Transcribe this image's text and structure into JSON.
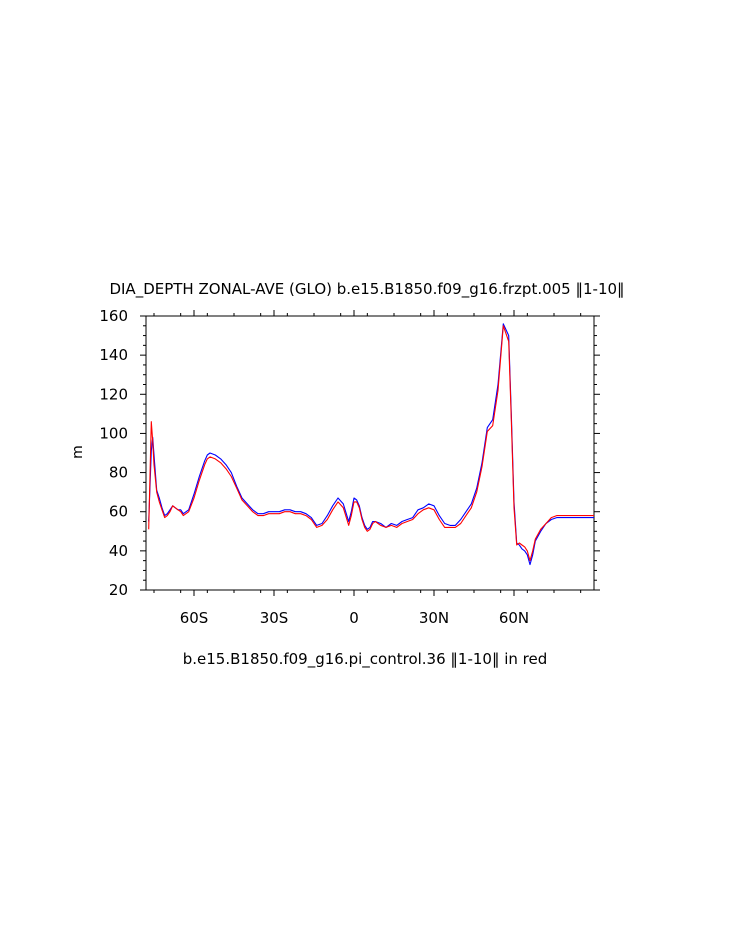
{
  "chart_data": {
    "type": "line",
    "title": "DIA_DEPTH ZONAL-AVE (GLO) b.e15.B1850.f09_g16.frzpt.005 ‖1-10‖",
    "subtitle": "b.e15.B1850.f09_g16.pi_control.36 ‖1-10‖ in red",
    "ylabel": "m",
    "xlabel": "",
    "xlim": [
      -78,
      90
    ],
    "ylim": [
      20,
      160
    ],
    "x_ticks": [
      {
        "value": -60,
        "label": "60S"
      },
      {
        "value": -30,
        "label": "30S"
      },
      {
        "value": 0,
        "label": "0"
      },
      {
        "value": 30,
        "label": "30N"
      },
      {
        "value": 60,
        "label": "60N"
      }
    ],
    "y_ticks": [
      20,
      40,
      60,
      80,
      100,
      120,
      140,
      160
    ],
    "grid": false,
    "series": [
      {
        "color": "#0000ff",
        "x": [
          -77,
          -76,
          -75.5,
          -75,
          -74,
          -73,
          -72,
          -71,
          -70,
          -69,
          -68,
          -67,
          -66,
          -65,
          -64,
          -62,
          -60,
          -58,
          -56,
          -55,
          -54,
          -52,
          -50,
          -48,
          -46,
          -44,
          -42,
          -40,
          -38,
          -36,
          -34,
          -32,
          -30,
          -28,
          -26,
          -24,
          -22,
          -20,
          -18,
          -16,
          -14,
          -12,
          -10,
          -8,
          -6,
          -4,
          -2,
          -1,
          0,
          1,
          2,
          3,
          4,
          5,
          6,
          7,
          8,
          10,
          12,
          14,
          16,
          18,
          20,
          22,
          24,
          26,
          28,
          30,
          32,
          34,
          36,
          38,
          40,
          42,
          44,
          46,
          48,
          50,
          52,
          54,
          56,
          58,
          59,
          60,
          61,
          62,
          63,
          64,
          65,
          66,
          67,
          68,
          70,
          72,
          74,
          76,
          77,
          78,
          80,
          82,
          84,
          86,
          88,
          90
        ],
        "y": [
          55,
          91,
          98,
          89,
          71,
          67,
          62,
          58,
          59,
          61,
          63,
          62,
          61,
          61,
          59,
          61,
          69,
          78,
          86,
          89,
          90,
          89,
          87,
          84,
          80,
          73,
          67,
          64,
          61,
          59,
          59,
          60,
          60,
          60,
          61,
          61,
          60,
          60,
          59,
          57,
          53,
          54,
          58,
          63,
          67,
          64,
          55,
          60,
          67,
          66,
          63,
          57,
          53,
          51,
          52,
          55,
          55,
          54,
          52,
          54,
          53,
          55,
          56,
          57,
          61,
          62,
          64,
          63,
          58,
          54,
          53,
          53,
          56,
          60,
          64,
          72,
          85,
          103,
          107,
          125,
          156,
          150,
          110,
          65,
          44,
          43,
          41,
          40,
          38,
          33,
          38,
          45,
          50,
          54,
          56,
          57,
          57,
          57,
          57,
          57,
          57,
          57,
          57,
          57
        ]
      },
      {
        "color": "#ff0000",
        "x": [
          -77,
          -76,
          -75.5,
          -75,
          -74,
          -73,
          -72,
          -71,
          -70,
          -69,
          -68,
          -67,
          -66,
          -65,
          -64,
          -62,
          -60,
          -58,
          -56,
          -55,
          -54,
          -52,
          -50,
          -48,
          -46,
          -44,
          -42,
          -40,
          -38,
          -36,
          -34,
          -32,
          -30,
          -28,
          -26,
          -24,
          -22,
          -20,
          -18,
          -16,
          -14,
          -12,
          -10,
          -8,
          -6,
          -4,
          -2,
          -1,
          0,
          1,
          2,
          3,
          4,
          5,
          6,
          7,
          8,
          10,
          12,
          14,
          16,
          18,
          20,
          22,
          24,
          26,
          28,
          30,
          32,
          34,
          36,
          38,
          40,
          42,
          44,
          46,
          48,
          50,
          52,
          54,
          56,
          58,
          59,
          60,
          61,
          62,
          63,
          64,
          65,
          66,
          67,
          68,
          70,
          72,
          74,
          76,
          77,
          78,
          80,
          82,
          84,
          86,
          88,
          90
        ],
        "y": [
          51,
          106,
          96,
          84,
          70,
          65,
          61,
          57,
          58,
          60,
          63,
          62,
          61,
          60,
          58,
          60,
          67,
          76,
          84,
          87,
          88,
          87,
          85,
          82,
          78,
          72,
          66,
          63,
          60,
          58,
          58,
          59,
          59,
          59,
          60,
          60,
          59,
          59,
          58,
          56,
          52,
          53,
          56,
          61,
          65,
          62,
          53,
          58,
          65,
          65,
          62,
          56,
          52,
          50,
          51,
          54,
          55,
          53,
          52,
          53,
          52,
          54,
          55,
          56,
          59,
          61,
          62,
          61,
          56,
          52,
          52,
          52,
          54,
          58,
          62,
          70,
          83,
          101,
          104,
          122,
          155,
          147,
          107,
          62,
          43,
          44,
          43,
          42,
          40,
          35,
          40,
          46,
          51,
          54,
          57,
          58,
          58,
          58,
          58,
          58,
          58,
          58,
          58,
          58
        ]
      }
    ]
  }
}
